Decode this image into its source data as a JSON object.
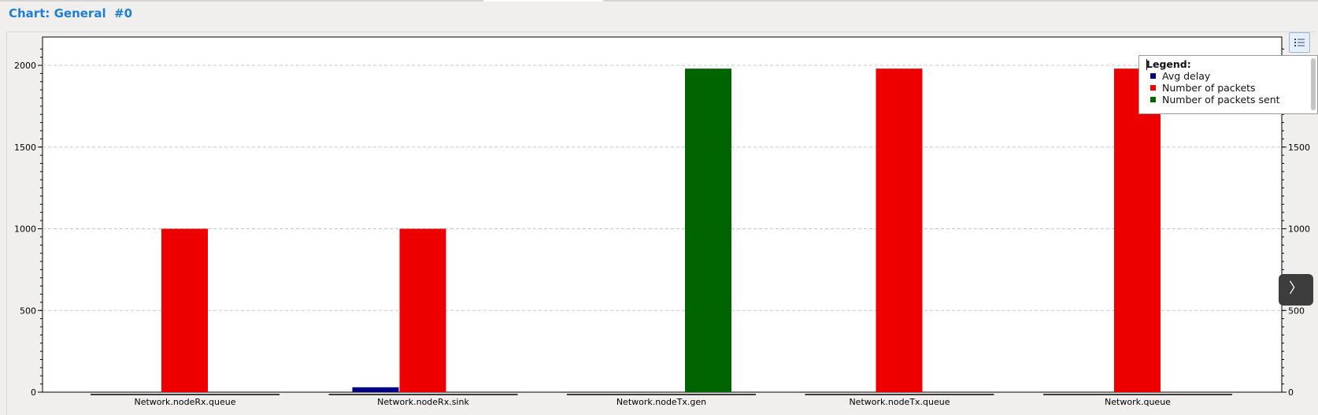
{
  "title": "Chart: General  #0",
  "legend": {
    "title": "Legend:",
    "items": [
      {
        "label": "Avg delay",
        "color": "#000080"
      },
      {
        "label": "Number of packets",
        "color": "#ee0000"
      },
      {
        "label": "Number of packets sent",
        "color": "#006400"
      }
    ]
  },
  "nav_button_label": "〉",
  "chart_data": {
    "type": "bar",
    "categories": [
      "Network.nodeRx.queue",
      "Network.nodeRx.sink",
      "Network.nodeTx.gen",
      "Network.nodeTx.queue",
      "Network.queue"
    ],
    "series": [
      {
        "name": "Avg delay",
        "color": "#000080",
        "values": [
          0,
          30,
          0,
          0,
          0
        ]
      },
      {
        "name": "Number of packets",
        "color": "#ee0000",
        "values": [
          1000,
          1000,
          0,
          1980,
          1980
        ]
      },
      {
        "name": "Number of packets sent",
        "color": "#006400",
        "values": [
          0,
          0,
          1980,
          0,
          0
        ]
      }
    ],
    "ylim": [
      0,
      2000
    ],
    "yticks": [
      "0",
      "500",
      "1000",
      "1500",
      "2000"
    ],
    "grid": true,
    "legend_position": "top-right"
  }
}
